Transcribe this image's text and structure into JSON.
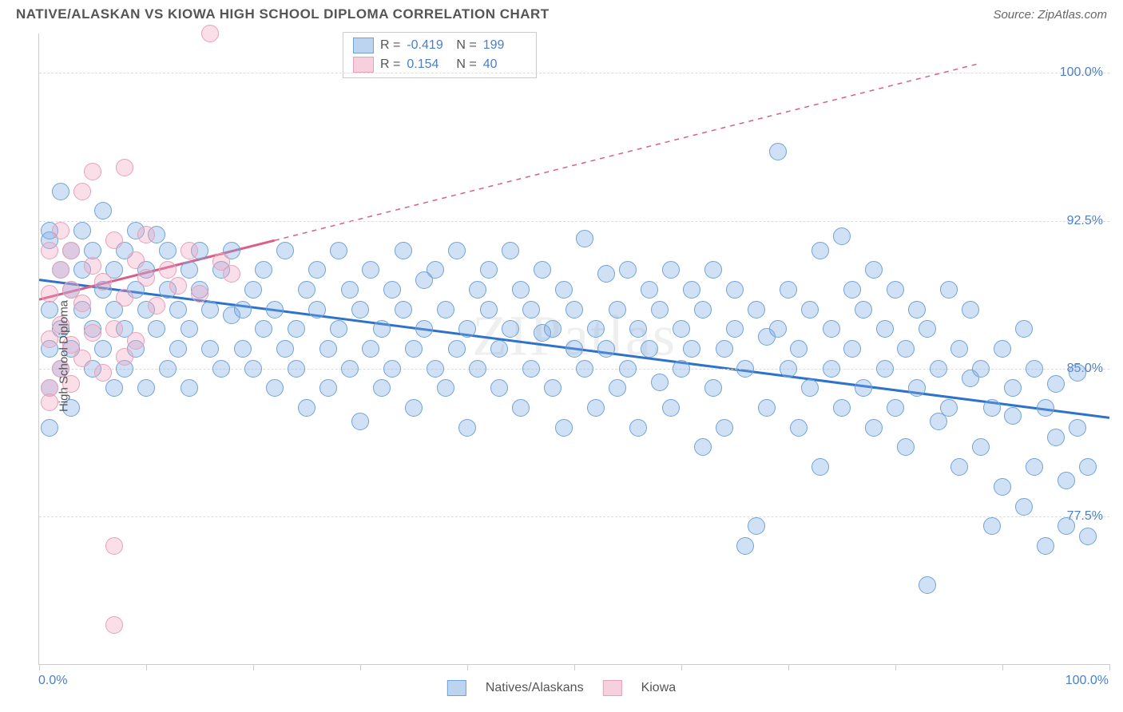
{
  "title": "NATIVE/ALASKAN VS KIOWA HIGH SCHOOL DIPLOMA CORRELATION CHART",
  "source": "Source: ZipAtlas.com",
  "watermark": "ZIPatlas",
  "chart": {
    "type": "scatter",
    "ylabel": "High School Diploma",
    "xlim": [
      0,
      100
    ],
    "ylim": [
      70,
      102
    ],
    "xtick_label_left": "0.0%",
    "xtick_label_right": "100.0%",
    "ytick_labels": [
      "77.5%",
      "85.0%",
      "92.5%",
      "100.0%"
    ],
    "ytick_values": [
      77.5,
      85.0,
      92.5,
      100.0
    ],
    "xtick_positions": [
      0,
      10,
      20,
      30,
      40,
      50,
      60,
      70,
      80,
      90,
      100
    ],
    "background_color": "#ffffff",
    "grid_color": "#dddddd",
    "axis_color": "#cccccc",
    "label_fontsize": 15,
    "tick_color": "#4a7fc9",
    "marker_radius": 10,
    "marker_stroke_width": 1.5,
    "series": [
      {
        "name": "Natives/Alaskans",
        "fill_color": "rgba(120,170,230,0.35)",
        "stroke_color": "#6fa3d8",
        "swatch_fill": "#bcd4ef",
        "swatch_border": "#6fa3d8",
        "R": "-0.419",
        "N": "199",
        "regression": {
          "x1": 0,
          "y1": 89.5,
          "x2": 100,
          "y2": 82.5,
          "color": "#2f72c9",
          "width": 3,
          "dash": "none"
        },
        "points": [
          [
            1,
            91.5
          ],
          [
            1,
            88
          ],
          [
            1,
            86
          ],
          [
            1,
            84
          ],
          [
            1,
            82
          ],
          [
            1,
            92
          ],
          [
            2,
            90
          ],
          [
            2,
            94
          ],
          [
            2,
            85
          ],
          [
            2,
            87
          ],
          [
            3,
            91
          ],
          [
            3,
            89
          ],
          [
            3,
            83
          ],
          [
            3,
            86
          ],
          [
            4,
            92
          ],
          [
            4,
            88
          ],
          [
            4,
            90
          ],
          [
            5,
            87
          ],
          [
            5,
            85
          ],
          [
            5,
            91
          ],
          [
            6,
            89
          ],
          [
            6,
            86
          ],
          [
            6,
            93
          ],
          [
            7,
            88
          ],
          [
            7,
            84
          ],
          [
            7,
            90
          ],
          [
            8,
            87
          ],
          [
            8,
            91
          ],
          [
            8,
            85
          ],
          [
            9,
            89
          ],
          [
            9,
            86
          ],
          [
            9,
            92
          ],
          [
            10,
            88
          ],
          [
            10,
            84
          ],
          [
            10,
            90
          ],
          [
            11,
            87
          ],
          [
            11,
            91.8
          ],
          [
            12,
            89
          ],
          [
            12,
            85
          ],
          [
            12,
            91
          ],
          [
            13,
            88
          ],
          [
            13,
            86
          ],
          [
            14,
            90
          ],
          [
            14,
            87
          ],
          [
            14,
            84
          ],
          [
            15,
            89
          ],
          [
            15,
            91
          ],
          [
            16,
            86
          ],
          [
            16,
            88
          ],
          [
            17,
            85
          ],
          [
            17,
            90
          ],
          [
            18,
            87.7
          ],
          [
            18,
            91
          ],
          [
            19,
            86
          ],
          [
            19,
            88
          ],
          [
            20,
            89
          ],
          [
            20,
            85
          ],
          [
            21,
            87
          ],
          [
            21,
            90
          ],
          [
            22,
            84
          ],
          [
            22,
            88
          ],
          [
            23,
            86
          ],
          [
            23,
            91
          ],
          [
            24,
            87
          ],
          [
            24,
            85
          ],
          [
            25,
            89
          ],
          [
            25,
            83
          ],
          [
            26,
            88
          ],
          [
            26,
            90
          ],
          [
            27,
            86
          ],
          [
            27,
            84
          ],
          [
            28,
            87
          ],
          [
            28,
            91
          ],
          [
            29,
            85
          ],
          [
            29,
            89
          ],
          [
            30,
            88
          ],
          [
            30,
            82.3
          ],
          [
            31,
            86
          ],
          [
            31,
            90
          ],
          [
            32,
            87
          ],
          [
            32,
            84
          ],
          [
            33,
            89
          ],
          [
            33,
            85
          ],
          [
            34,
            88
          ],
          [
            34,
            91
          ],
          [
            35,
            86
          ],
          [
            35,
            83
          ],
          [
            36,
            87
          ],
          [
            36,
            89.5
          ],
          [
            37,
            85
          ],
          [
            37,
            90
          ],
          [
            38,
            88
          ],
          [
            38,
            84
          ],
          [
            39,
            86
          ],
          [
            39,
            91
          ],
          [
            40,
            87
          ],
          [
            40,
            82
          ],
          [
            41,
            89
          ],
          [
            41,
            85
          ],
          [
            42,
            88
          ],
          [
            42,
            90
          ],
          [
            43,
            84
          ],
          [
            43,
            86
          ],
          [
            44,
            87
          ],
          [
            44,
            91
          ],
          [
            45,
            83
          ],
          [
            45,
            89
          ],
          [
            46,
            85
          ],
          [
            46,
            88
          ],
          [
            47,
            86.8
          ],
          [
            47,
            90
          ],
          [
            48,
            84
          ],
          [
            48,
            87
          ],
          [
            49,
            89
          ],
          [
            49,
            82
          ],
          [
            50,
            86
          ],
          [
            50,
            88
          ],
          [
            51,
            85
          ],
          [
            51,
            91.6
          ],
          [
            52,
            87
          ],
          [
            52,
            83
          ],
          [
            53,
            89.8
          ],
          [
            53,
            86
          ],
          [
            54,
            88
          ],
          [
            54,
            84
          ],
          [
            55,
            90
          ],
          [
            55,
            85
          ],
          [
            56,
            87
          ],
          [
            56,
            82
          ],
          [
            57,
            89
          ],
          [
            57,
            86
          ],
          [
            58,
            84.3
          ],
          [
            58,
            88
          ],
          [
            59,
            83
          ],
          [
            59,
            90
          ],
          [
            60,
            85
          ],
          [
            60,
            87
          ],
          [
            61,
            86
          ],
          [
            61,
            89
          ],
          [
            62,
            81
          ],
          [
            62,
            88
          ],
          [
            63,
            84
          ],
          [
            63,
            90
          ],
          [
            64,
            86
          ],
          [
            64,
            82
          ],
          [
            65,
            87
          ],
          [
            65,
            89
          ],
          [
            66,
            76
          ],
          [
            66,
            85
          ],
          [
            67,
            77
          ],
          [
            67,
            88
          ],
          [
            68,
            86.6
          ],
          [
            68,
            83
          ],
          [
            69,
            96
          ],
          [
            69,
            87
          ],
          [
            70,
            85
          ],
          [
            70,
            89
          ],
          [
            71,
            82
          ],
          [
            71,
            86
          ],
          [
            72,
            88
          ],
          [
            72,
            84
          ],
          [
            73,
            91
          ],
          [
            73,
            80
          ],
          [
            74,
            87
          ],
          [
            74,
            85
          ],
          [
            75,
            91.7
          ],
          [
            75,
            83
          ],
          [
            76,
            89
          ],
          [
            76,
            86
          ],
          [
            77,
            84
          ],
          [
            77,
            88
          ],
          [
            78,
            82
          ],
          [
            78,
            90
          ],
          [
            79,
            85
          ],
          [
            79,
            87
          ],
          [
            80,
            83
          ],
          [
            80,
            89
          ],
          [
            81,
            86
          ],
          [
            81,
            81
          ],
          [
            82,
            88
          ],
          [
            82,
            84
          ],
          [
            83,
            74
          ],
          [
            83,
            87
          ],
          [
            84,
            85
          ],
          [
            84,
            82.3
          ],
          [
            85,
            89
          ],
          [
            85,
            83
          ],
          [
            86,
            80
          ],
          [
            86,
            86
          ],
          [
            87,
            84.5
          ],
          [
            87,
            88
          ],
          [
            88,
            81
          ],
          [
            88,
            85
          ],
          [
            89,
            77
          ],
          [
            89,
            83
          ],
          [
            90,
            86
          ],
          [
            90,
            79
          ],
          [
            91,
            84
          ],
          [
            91,
            82.6
          ],
          [
            92,
            78
          ],
          [
            92,
            87
          ],
          [
            93,
            80
          ],
          [
            93,
            85
          ],
          [
            94,
            76
          ],
          [
            94,
            83
          ],
          [
            95,
            81.5
          ],
          [
            95,
            84.2
          ],
          [
            96,
            77
          ],
          [
            96,
            79.3
          ],
          [
            97,
            82
          ],
          [
            97,
            84.8
          ],
          [
            98,
            76.5
          ],
          [
            98,
            80
          ]
        ]
      },
      {
        "name": "Kiowa",
        "fill_color": "rgba(240,160,190,0.35)",
        "stroke_color": "#e8a0b8",
        "swatch_fill": "#f6d0dc",
        "swatch_border": "#e8a0b8",
        "R": "0.154",
        "N": "40",
        "regression": {
          "x1": 0,
          "y1": 88.5,
          "x2": 22,
          "y2": 91.5,
          "color": "#d85f8a",
          "width": 3,
          "dash": "none",
          "ext_x2": 88,
          "ext_y2": 100.5,
          "ext_dash": "6,6"
        },
        "points": [
          [
            1,
            91
          ],
          [
            1,
            88.8
          ],
          [
            1,
            86.5
          ],
          [
            1,
            84
          ],
          [
            1,
            83.3
          ],
          [
            2,
            90
          ],
          [
            2,
            87.2
          ],
          [
            2,
            85
          ],
          [
            2,
            92
          ],
          [
            3,
            89
          ],
          [
            3,
            86.2
          ],
          [
            3,
            91
          ],
          [
            3,
            84.2
          ],
          [
            4,
            88.3
          ],
          [
            4,
            94
          ],
          [
            4,
            85.5
          ],
          [
            5,
            90.2
          ],
          [
            5,
            86.8
          ],
          [
            5,
            95
          ],
          [
            6,
            89.4
          ],
          [
            6,
            84.8
          ],
          [
            7,
            91.5
          ],
          [
            7,
            87
          ],
          [
            7,
            76
          ],
          [
            8,
            88.6
          ],
          [
            8,
            95.2
          ],
          [
            8,
            85.6
          ],
          [
            9,
            90.5
          ],
          [
            9,
            86.4
          ],
          [
            10,
            89.6
          ],
          [
            10,
            91.8
          ],
          [
            11,
            88.2
          ],
          [
            12,
            90
          ],
          [
            13,
            89.2
          ],
          [
            14,
            91
          ],
          [
            15,
            88.8
          ],
          [
            16,
            102
          ],
          [
            7,
            72
          ],
          [
            17,
            90.4
          ],
          [
            18,
            89.8
          ]
        ]
      }
    ]
  },
  "stats_legend": {
    "R_label": "R =",
    "N_label": "N ="
  },
  "bottom_legend": {
    "series1": "Natives/Alaskans",
    "series2": "Kiowa"
  }
}
